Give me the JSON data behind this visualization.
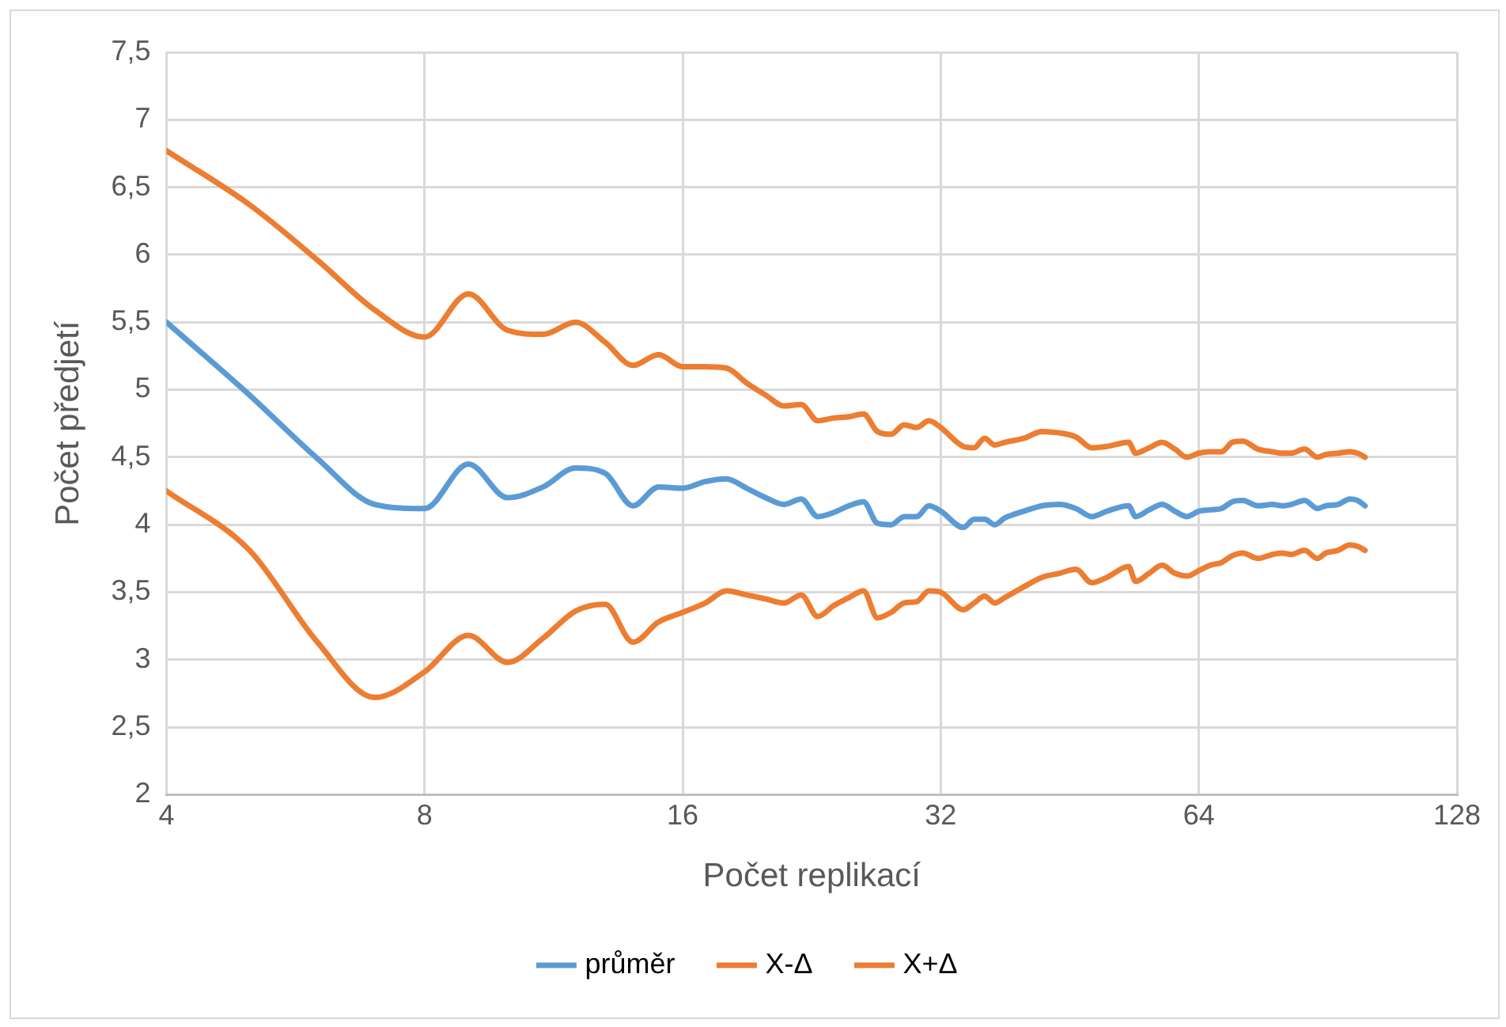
{
  "chart_data": {
    "type": "line",
    "xlabel": "Počet replikací",
    "ylabel": "Počet předjetí",
    "x": [
      4,
      5,
      6,
      7,
      8,
      9,
      10,
      11,
      12,
      13,
      14,
      15,
      16,
      17,
      18,
      19,
      20,
      21,
      22,
      23,
      24,
      25,
      26,
      27,
      28,
      29,
      30,
      31,
      32,
      34,
      35,
      36,
      37,
      38,
      40,
      42,
      44,
      46,
      48,
      50,
      53,
      54,
      56,
      58,
      60,
      62,
      64,
      66,
      68,
      70,
      72,
      75,
      78,
      80,
      82,
      85,
      88,
      90,
      93,
      96,
      98,
      100
    ],
    "series": [
      {
        "name": "průměr",
        "color": "#5b9bd5",
        "values": [
          5.5,
          4.96,
          4.49,
          4.15,
          4.12,
          4.45,
          4.2,
          4.28,
          4.42,
          4.38,
          4.14,
          4.28,
          4.27,
          4.32,
          4.34,
          4.27,
          4.2,
          4.15,
          4.19,
          4.06,
          4.09,
          4.14,
          4.17,
          4.01,
          4.0,
          4.06,
          4.06,
          4.14,
          4.1,
          3.98,
          4.04,
          4.04,
          4.0,
          4.05,
          4.1,
          4.14,
          4.15,
          4.12,
          4.06,
          4.1,
          4.14,
          4.06,
          4.11,
          4.15,
          4.1,
          4.06,
          4.1,
          4.11,
          4.12,
          4.17,
          4.18,
          4.14,
          4.15,
          4.14,
          4.15,
          4.18,
          4.12,
          4.14,
          4.15,
          4.19,
          4.18,
          4.14
        ]
      },
      {
        "name": "X-Δ",
        "color": "#ed7d31",
        "values": [
          4.25,
          3.81,
          3.13,
          2.72,
          2.91,
          3.18,
          2.98,
          3.16,
          3.36,
          3.41,
          3.13,
          3.28,
          3.35,
          3.42,
          3.51,
          3.48,
          3.45,
          3.42,
          3.48,
          3.32,
          3.4,
          3.46,
          3.51,
          3.31,
          3.35,
          3.42,
          3.43,
          3.51,
          3.5,
          3.37,
          3.42,
          3.47,
          3.42,
          3.46,
          3.54,
          3.61,
          3.64,
          3.67,
          3.57,
          3.61,
          3.69,
          3.58,
          3.64,
          3.7,
          3.64,
          3.62,
          3.66,
          3.7,
          3.72,
          3.77,
          3.79,
          3.75,
          3.78,
          3.79,
          3.78,
          3.81,
          3.75,
          3.79,
          3.81,
          3.85,
          3.84,
          3.81
        ]
      },
      {
        "name": "X+Δ",
        "color": "#ed7d31",
        "values": [
          6.77,
          6.37,
          5.96,
          5.59,
          5.39,
          5.71,
          5.44,
          5.41,
          5.5,
          5.35,
          5.18,
          5.26,
          5.17,
          5.17,
          5.16,
          5.05,
          4.96,
          4.88,
          4.89,
          4.77,
          4.79,
          4.8,
          4.82,
          4.69,
          4.67,
          4.74,
          4.72,
          4.77,
          4.72,
          4.58,
          4.57,
          4.64,
          4.59,
          4.61,
          4.64,
          4.69,
          4.68,
          4.65,
          4.57,
          4.58,
          4.61,
          4.53,
          4.57,
          4.61,
          4.56,
          4.5,
          4.53,
          4.54,
          4.54,
          4.61,
          4.62,
          4.56,
          4.54,
          4.53,
          4.53,
          4.56,
          4.5,
          4.52,
          4.53,
          4.54,
          4.53,
          4.5
        ]
      }
    ],
    "log": "x",
    "xlim": [
      4,
      128
    ],
    "xticks": [
      4,
      8,
      16,
      32,
      64,
      128
    ],
    "ylim": [
      2,
      7.5
    ],
    "yticks": [
      {
        "value": 2,
        "label": "2"
      },
      {
        "value": 2.5,
        "label": "2,5"
      },
      {
        "value": 3,
        "label": "3"
      },
      {
        "value": 3.5,
        "label": "3,5"
      },
      {
        "value": 4,
        "label": "4"
      },
      {
        "value": 4.5,
        "label": "4,5"
      },
      {
        "value": 5,
        "label": "5"
      },
      {
        "value": 5.5,
        "label": "5,5"
      },
      {
        "value": 6,
        "label": "6"
      },
      {
        "value": 6.5,
        "label": "6,5"
      },
      {
        "value": 7,
        "label": "7"
      },
      {
        "value": 7.5,
        "label": "7,5"
      }
    ],
    "grid": true,
    "legend": "bottom",
    "marker": "none",
    "line_style": "solid"
  }
}
